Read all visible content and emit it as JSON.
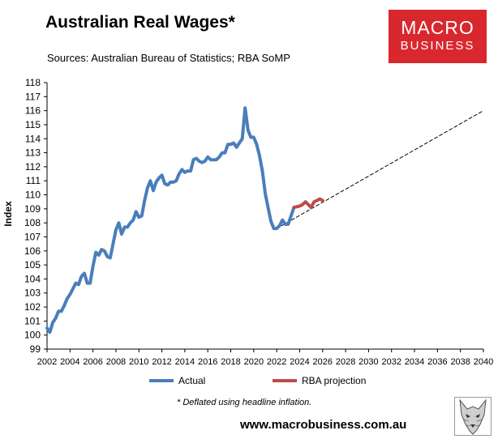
{
  "title": "Australian Real Wages*",
  "subtitle": "Sources: Australian Bureau of Statistics; RBA SoMP",
  "logo": {
    "line1": "MACRO",
    "line2": "BUSINESS",
    "color": "#d9272e"
  },
  "footnote": "* Deflated using headline inflation.",
  "website": "www.macrobusiness.com.au",
  "legend": {
    "placement": "bottom"
  },
  "chart_data": {
    "type": "line",
    "ylabel": "Index",
    "xlabel": "",
    "xlim": [
      2002,
      2040
    ],
    "ylim": [
      99,
      118
    ],
    "x_ticks": [
      "2002",
      "2004",
      "2006",
      "2008",
      "2010",
      "2012",
      "2014",
      "2016",
      "2018",
      "2020",
      "2022",
      "2024",
      "2026",
      "2028",
      "2030",
      "2032",
      "2034",
      "2036",
      "2038",
      "2040"
    ],
    "y_ticks": [
      "99",
      "100",
      "101",
      "102",
      "103",
      "104",
      "105",
      "106",
      "107",
      "108",
      "109",
      "110",
      "111",
      "112",
      "113",
      "114",
      "115",
      "116",
      "117",
      "118"
    ],
    "grid": false,
    "series": [
      {
        "name": "Actual",
        "color": "#4a7ebb",
        "style": "solid",
        "points": [
          [
            2002.0,
            100.5
          ],
          [
            2002.25,
            100.2
          ],
          [
            2002.5,
            100.9
          ],
          [
            2002.75,
            101.2
          ],
          [
            2003.0,
            101.7
          ],
          [
            2003.25,
            101.7
          ],
          [
            2003.5,
            102.1
          ],
          [
            2003.75,
            102.6
          ],
          [
            2004.0,
            102.9
          ],
          [
            2004.25,
            103.3
          ],
          [
            2004.5,
            103.7
          ],
          [
            2004.75,
            103.6
          ],
          [
            2005.0,
            104.2
          ],
          [
            2005.25,
            104.4
          ],
          [
            2005.5,
            103.7
          ],
          [
            2005.75,
            103.7
          ],
          [
            2006.0,
            104.9
          ],
          [
            2006.25,
            105.9
          ],
          [
            2006.5,
            105.7
          ],
          [
            2006.75,
            106.1
          ],
          [
            2007.0,
            106.0
          ],
          [
            2007.25,
            105.6
          ],
          [
            2007.5,
            105.5
          ],
          [
            2007.75,
            106.5
          ],
          [
            2008.0,
            107.5
          ],
          [
            2008.25,
            108.0
          ],
          [
            2008.5,
            107.2
          ],
          [
            2008.75,
            107.7
          ],
          [
            2009.0,
            107.7
          ],
          [
            2009.25,
            108.0
          ],
          [
            2009.5,
            108.2
          ],
          [
            2009.75,
            108.8
          ],
          [
            2010.0,
            108.4
          ],
          [
            2010.25,
            108.5
          ],
          [
            2010.5,
            109.6
          ],
          [
            2010.75,
            110.5
          ],
          [
            2011.0,
            111.0
          ],
          [
            2011.25,
            110.3
          ],
          [
            2011.5,
            110.9
          ],
          [
            2011.75,
            111.2
          ],
          [
            2012.0,
            111.4
          ],
          [
            2012.25,
            110.8
          ],
          [
            2012.5,
            110.7
          ],
          [
            2012.75,
            110.9
          ],
          [
            2013.0,
            110.9
          ],
          [
            2013.25,
            111.0
          ],
          [
            2013.5,
            111.5
          ],
          [
            2013.75,
            111.8
          ],
          [
            2014.0,
            111.6
          ],
          [
            2014.25,
            111.7
          ],
          [
            2014.5,
            111.7
          ],
          [
            2014.75,
            112.5
          ],
          [
            2015.0,
            112.6
          ],
          [
            2015.25,
            112.4
          ],
          [
            2015.5,
            112.3
          ],
          [
            2015.75,
            112.4
          ],
          [
            2016.0,
            112.7
          ],
          [
            2016.25,
            112.5
          ],
          [
            2016.5,
            112.5
          ],
          [
            2016.75,
            112.5
          ],
          [
            2017.0,
            112.7
          ],
          [
            2017.25,
            113.0
          ],
          [
            2017.5,
            113.0
          ],
          [
            2017.75,
            113.6
          ],
          [
            2018.0,
            113.6
          ],
          [
            2018.25,
            113.7
          ],
          [
            2018.5,
            113.4
          ],
          [
            2018.75,
            113.7
          ],
          [
            2019.0,
            114.0
          ],
          [
            2019.25,
            116.2
          ],
          [
            2019.5,
            114.6
          ],
          [
            2019.75,
            114.1
          ],
          [
            2020.0,
            114.1
          ],
          [
            2020.25,
            113.6
          ],
          [
            2020.5,
            112.8
          ],
          [
            2020.75,
            111.7
          ],
          [
            2021.0,
            110.1
          ],
          [
            2021.25,
            109.1
          ],
          [
            2021.5,
            108.1
          ],
          [
            2021.75,
            107.6
          ],
          [
            2022.0,
            107.6
          ],
          [
            2022.25,
            107.8
          ],
          [
            2022.5,
            108.2
          ],
          [
            2022.75,
            107.9
          ],
          [
            2023.0,
            107.9
          ],
          [
            2023.25,
            108.5
          ],
          [
            2023.5,
            109.1
          ]
        ]
      },
      {
        "name": "RBA projection",
        "color": "#be4b48",
        "style": "solid",
        "points": [
          [
            2023.5,
            109.1
          ],
          [
            2023.75,
            109.15
          ],
          [
            2024.0,
            109.2
          ],
          [
            2024.25,
            109.3
          ],
          [
            2024.5,
            109.5
          ],
          [
            2024.75,
            109.3
          ],
          [
            2025.0,
            109.1
          ],
          [
            2025.25,
            109.5
          ],
          [
            2025.5,
            109.6
          ],
          [
            2025.75,
            109.7
          ],
          [
            2026.0,
            109.6
          ]
        ]
      },
      {
        "name": "",
        "color": "#000000",
        "style": "dashed",
        "points": [
          [
            2022.0,
            107.6
          ],
          [
            2040.0,
            116.0
          ]
        ]
      }
    ]
  }
}
